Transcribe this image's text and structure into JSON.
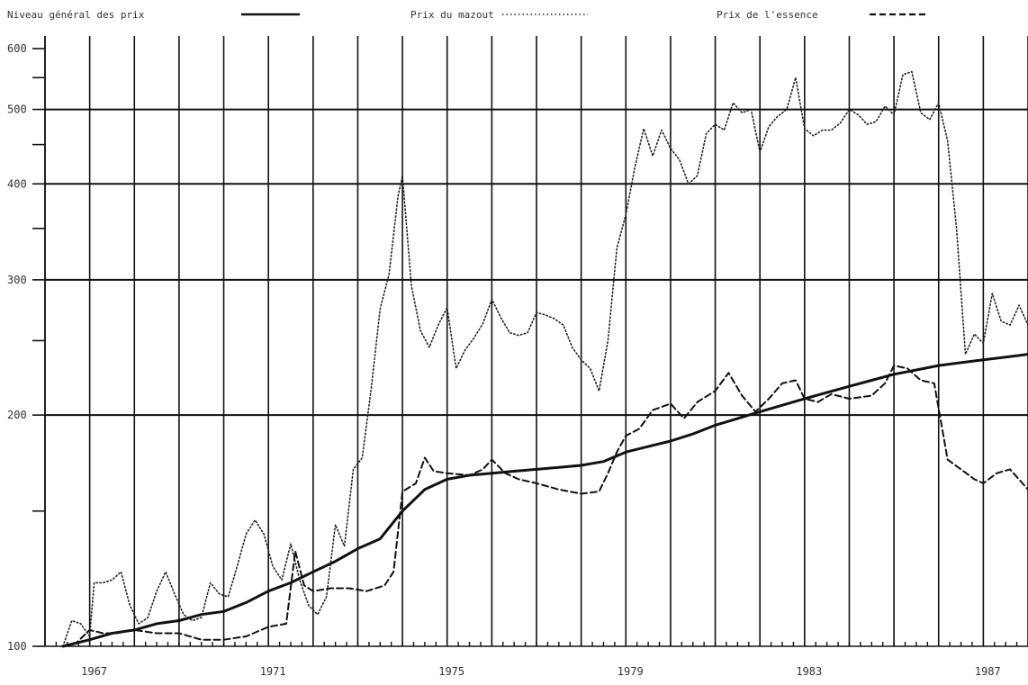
{
  "chart_data": {
    "type": "line",
    "title": "",
    "xlabel": "",
    "ylabel": "",
    "y_scale": "log",
    "ylim": [
      100,
      600
    ],
    "xlim": [
      1966,
      1988
    ],
    "grid": true,
    "legend_position": "top",
    "y_ticks": [
      "100",
      "200",
      "300",
      "400",
      "500",
      "600"
    ],
    "x_ticks": [
      "1967",
      "1971",
      "1975",
      "1979",
      "1983",
      "1987"
    ],
    "series": [
      {
        "name": "Niveau général des prix",
        "style": "solid",
        "points": [
          [
            1966.4,
            100
          ],
          [
            1967,
            102
          ],
          [
            1967.5,
            104
          ],
          [
            1968,
            105
          ],
          [
            1968.5,
            107
          ],
          [
            1969,
            108
          ],
          [
            1969.5,
            110
          ],
          [
            1970,
            111
          ],
          [
            1970.5,
            114
          ],
          [
            1971,
            118
          ],
          [
            1971.5,
            121
          ],
          [
            1972,
            125
          ],
          [
            1972.5,
            129
          ],
          [
            1973,
            134
          ],
          [
            1973.5,
            138
          ],
          [
            1974,
            150
          ],
          [
            1974.5,
            160
          ],
          [
            1975,
            165
          ],
          [
            1975.5,
            167
          ],
          [
            1976,
            168
          ],
          [
            1976.5,
            169
          ],
          [
            1977,
            170
          ],
          [
            1977.5,
            171
          ],
          [
            1978,
            172
          ],
          [
            1978.5,
            174
          ],
          [
            1979,
            179
          ],
          [
            1979.5,
            182
          ],
          [
            1980,
            185
          ],
          [
            1980.5,
            189
          ],
          [
            1981,
            194
          ],
          [
            1981.5,
            198
          ],
          [
            1982,
            202
          ],
          [
            1982.5,
            206
          ],
          [
            1983,
            210
          ],
          [
            1983.5,
            214
          ],
          [
            1984,
            218
          ],
          [
            1984.5,
            222
          ],
          [
            1985,
            226
          ],
          [
            1985.5,
            229
          ],
          [
            1986,
            232
          ],
          [
            1986.5,
            234
          ],
          [
            1987,
            236
          ],
          [
            1987.5,
            238
          ],
          [
            1988,
            240
          ]
        ]
      },
      {
        "name": "Prix du mazout",
        "style": "dotted",
        "points": [
          [
            1966.4,
            100
          ],
          [
            1966.6,
            108
          ],
          [
            1966.8,
            107
          ],
          [
            1967,
            103
          ],
          [
            1967.1,
            121
          ],
          [
            1967.3,
            121
          ],
          [
            1967.5,
            122
          ],
          [
            1967.7,
            125
          ],
          [
            1967.9,
            113
          ],
          [
            1968.1,
            107
          ],
          [
            1968.3,
            109
          ],
          [
            1968.5,
            118
          ],
          [
            1968.7,
            125
          ],
          [
            1968.9,
            117
          ],
          [
            1969.1,
            110
          ],
          [
            1969.3,
            108
          ],
          [
            1969.5,
            109
          ],
          [
            1969.7,
            121
          ],
          [
            1969.9,
            117
          ],
          [
            1970.1,
            116
          ],
          [
            1970.3,
            127
          ],
          [
            1970.5,
            140
          ],
          [
            1970.7,
            146
          ],
          [
            1970.9,
            140
          ],
          [
            1971.1,
            127
          ],
          [
            1971.3,
            122
          ],
          [
            1971.5,
            136
          ],
          [
            1971.7,
            122
          ],
          [
            1971.9,
            113
          ],
          [
            1972.1,
            110
          ],
          [
            1972.3,
            116
          ],
          [
            1972.5,
            144
          ],
          [
            1972.7,
            135
          ],
          [
            1972.9,
            170
          ],
          [
            1973.1,
            176
          ],
          [
            1973.3,
            216
          ],
          [
            1973.5,
            275
          ],
          [
            1973.7,
            305
          ],
          [
            1973.9,
            385
          ],
          [
            1974,
            410
          ],
          [
            1974.2,
            295
          ],
          [
            1974.4,
            258
          ],
          [
            1974.6,
            245
          ],
          [
            1974.8,
            262
          ],
          [
            1975,
            276
          ],
          [
            1975.2,
            230
          ],
          [
            1975.4,
            243
          ],
          [
            1975.6,
            252
          ],
          [
            1975.8,
            263
          ],
          [
            1976,
            283
          ],
          [
            1976.2,
            268
          ],
          [
            1976.4,
            256
          ],
          [
            1976.6,
            254
          ],
          [
            1976.8,
            256
          ],
          [
            1977,
            272
          ],
          [
            1977.2,
            270
          ],
          [
            1977.4,
            267
          ],
          [
            1977.6,
            262
          ],
          [
            1977.8,
            245
          ],
          [
            1978,
            236
          ],
          [
            1978.2,
            230
          ],
          [
            1978.4,
            215
          ],
          [
            1978.6,
            250
          ],
          [
            1978.8,
            330
          ],
          [
            1979,
            365
          ],
          [
            1979.2,
            420
          ],
          [
            1979.4,
            472
          ],
          [
            1979.6,
            435
          ],
          [
            1979.8,
            470
          ],
          [
            1980,
            445
          ],
          [
            1980.2,
            430
          ],
          [
            1980.4,
            400
          ],
          [
            1980.6,
            410
          ],
          [
            1980.8,
            465
          ],
          [
            1981,
            478
          ],
          [
            1981.2,
            470
          ],
          [
            1981.4,
            510
          ],
          [
            1981.6,
            495
          ],
          [
            1981.8,
            500
          ],
          [
            1982,
            440
          ],
          [
            1982.2,
            475
          ],
          [
            1982.4,
            490
          ],
          [
            1982.6,
            500
          ],
          [
            1982.8,
            550
          ],
          [
            1983,
            472
          ],
          [
            1983.2,
            462
          ],
          [
            1983.4,
            470
          ],
          [
            1983.6,
            470
          ],
          [
            1983.8,
            480
          ],
          [
            1984,
            500
          ],
          [
            1984.2,
            492
          ],
          [
            1984.4,
            478
          ],
          [
            1984.6,
            482
          ],
          [
            1984.8,
            505
          ],
          [
            1985,
            492
          ],
          [
            1985.2,
            555
          ],
          [
            1985.4,
            560
          ],
          [
            1985.6,
            495
          ],
          [
            1985.8,
            485
          ],
          [
            1986,
            510
          ],
          [
            1986.2,
            455
          ],
          [
            1986.4,
            350
          ],
          [
            1986.6,
            240
          ],
          [
            1986.8,
            255
          ],
          [
            1987,
            248
          ],
          [
            1987.2,
            288
          ],
          [
            1987.4,
            265
          ],
          [
            1987.6,
            262
          ],
          [
            1987.8,
            278
          ],
          [
            1988,
            262
          ]
        ]
      },
      {
        "name": "Prix de l'essence",
        "style": "dashed",
        "points": [
          [
            1966.4,
            100
          ],
          [
            1966.7,
            101
          ],
          [
            1967,
            105
          ],
          [
            1967.3,
            104
          ],
          [
            1967.6,
            104
          ],
          [
            1968,
            105
          ],
          [
            1968.5,
            104
          ],
          [
            1969,
            104
          ],
          [
            1969.5,
            102
          ],
          [
            1970,
            102
          ],
          [
            1970.5,
            103
          ],
          [
            1971,
            106
          ],
          [
            1971.4,
            107
          ],
          [
            1971.6,
            133
          ],
          [
            1971.8,
            120
          ],
          [
            1972,
            118
          ],
          [
            1972.4,
            119
          ],
          [
            1972.8,
            119
          ],
          [
            1973.2,
            118
          ],
          [
            1973.6,
            120
          ],
          [
            1973.8,
            125
          ],
          [
            1974,
            159
          ],
          [
            1974.3,
            163
          ],
          [
            1974.5,
            176
          ],
          [
            1974.7,
            169
          ],
          [
            1975,
            168
          ],
          [
            1975.5,
            167
          ],
          [
            1975.8,
            170
          ],
          [
            1976,
            175
          ],
          [
            1976.3,
            168
          ],
          [
            1976.6,
            165
          ],
          [
            1977,
            163
          ],
          [
            1977.5,
            160
          ],
          [
            1978,
            158
          ],
          [
            1978.4,
            159
          ],
          [
            1978.6,
            168
          ],
          [
            1978.8,
            179
          ],
          [
            1979,
            188
          ],
          [
            1979.3,
            192
          ],
          [
            1979.6,
            203
          ],
          [
            1980,
            207
          ],
          [
            1980.3,
            198
          ],
          [
            1980.6,
            208
          ],
          [
            1981,
            215
          ],
          [
            1981.3,
            227
          ],
          [
            1981.6,
            212
          ],
          [
            1981.9,
            202
          ],
          [
            1982.2,
            210
          ],
          [
            1982.5,
            220
          ],
          [
            1982.8,
            222
          ],
          [
            1983,
            210
          ],
          [
            1983.3,
            208
          ],
          [
            1983.6,
            213
          ],
          [
            1984,
            210
          ],
          [
            1984.5,
            212
          ],
          [
            1984.8,
            220
          ],
          [
            1985,
            232
          ],
          [
            1985.3,
            230
          ],
          [
            1985.6,
            222
          ],
          [
            1985.9,
            220
          ],
          [
            1986.2,
            175
          ],
          [
            1986.5,
            170
          ],
          [
            1986.8,
            165
          ],
          [
            1987,
            163
          ],
          [
            1987.3,
            168
          ],
          [
            1987.6,
            170
          ],
          [
            1988,
            160
          ]
        ]
      }
    ]
  }
}
